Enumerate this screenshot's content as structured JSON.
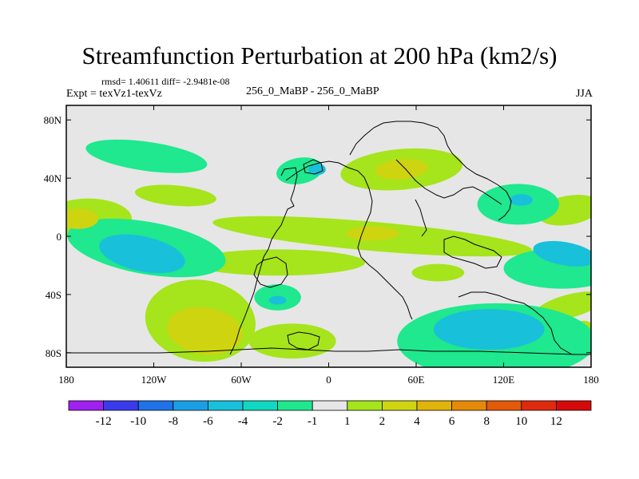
{
  "header": {
    "title": "Streamfunction Perturbation at 200 hPa (km2/s)",
    "stats": "rmsd= 1.40611 diff= -2.9481e-08",
    "experiment": "Expt = texVz1-texVz",
    "case_label": "256_0_MaBP - 256_0_MaBP",
    "season": "JJA"
  },
  "chart_data": {
    "type": "contour-map",
    "title": "Streamfunction Perturbation at 200 hPa (km2/s)",
    "xlim": [
      -180,
      180
    ],
    "ylim": [
      -90,
      90
    ],
    "x_ticks": [
      {
        "value": -180,
        "label": "180"
      },
      {
        "value": -120,
        "label": "120W"
      },
      {
        "value": -60,
        "label": "60W"
      },
      {
        "value": 0,
        "label": "0"
      },
      {
        "value": 60,
        "label": "60E"
      },
      {
        "value": 120,
        "label": "120E"
      },
      {
        "value": 180,
        "label": "180"
      }
    ],
    "y_ticks": [
      {
        "value": 80,
        "label": "80N"
      },
      {
        "value": 40,
        "label": "40N"
      },
      {
        "value": 0,
        "label": "0"
      },
      {
        "value": -40,
        "label": "40S"
      },
      {
        "value": -80,
        "label": "80S"
      }
    ],
    "colorbar": {
      "levels": [
        "-12",
        "-10",
        "-8",
        "-6",
        "-4",
        "-2",
        "-1",
        "1",
        "2",
        "4",
        "6",
        "8",
        "10",
        "12"
      ],
      "colors": [
        "#a020f0",
        "#3b3bee",
        "#1f72e8",
        "#1a9fe6",
        "#19c0d9",
        "#11d8c0",
        "#1fe88e",
        "#e6e6e6",
        "#a6e41c",
        "#cfd411",
        "#e0b40b",
        "#e58a08",
        "#e35a08",
        "#e02a10",
        "#d60a0a"
      ]
    },
    "background_color": "#e6e6e6",
    "regions": [
      {
        "name": "pos-north-atlantic",
        "level": "1-2",
        "cx": 50,
        "cy": 46,
        "rx": 42,
        "ry": 14,
        "rot": -5
      },
      {
        "name": "pos-north-atlantic-core",
        "level": "2-4",
        "cx": 50,
        "cy": 46,
        "rx": 18,
        "ry": 7,
        "rot": -5
      },
      {
        "name": "neg-north-pacific",
        "level": "-2--1",
        "cx": -125,
        "cy": 55,
        "rx": 42,
        "ry": 10,
        "rot": 8
      },
      {
        "name": "neg-north-atlantic",
        "level": "-2--1",
        "cx": -20,
        "cy": 45,
        "rx": 16,
        "ry": 9,
        "rot": -10
      },
      {
        "name": "neg-north-atlantic-core",
        "level": "-4--2",
        "cx": -8,
        "cy": 46,
        "rx": 6,
        "ry": 4,
        "rot": 0
      },
      {
        "name": "pos-north-pacific-low",
        "level": "1-2",
        "cx": -105,
        "cy": 28,
        "rx": 28,
        "ry": 7,
        "rot": 5
      },
      {
        "name": "pos-west-pacific",
        "level": "1-2",
        "cx": -165,
        "cy": 12,
        "rx": 30,
        "ry": 14,
        "rot": 0
      },
      {
        "name": "pos-west-pacific-core",
        "level": "2-4",
        "cx": -172,
        "cy": 12,
        "rx": 14,
        "ry": 7,
        "rot": 0
      },
      {
        "name": "neg-asia",
        "level": "-2--1",
        "cx": 130,
        "cy": 22,
        "rx": 28,
        "ry": 14,
        "rot": 0
      },
      {
        "name": "neg-asia-core",
        "level": "-4--2",
        "cx": 132,
        "cy": 25,
        "rx": 8,
        "ry": 4,
        "rot": 0
      },
      {
        "name": "pos-asia-east",
        "level": "1-2",
        "cx": 165,
        "cy": 18,
        "rx": 22,
        "ry": 10,
        "rot": -10
      },
      {
        "name": "pos-equatorial-band",
        "level": "1-2",
        "cx": 30,
        "cy": 0,
        "rx": 110,
        "ry": 10,
        "rot": 5
      },
      {
        "name": "pos-equatorial-core",
        "level": "2-4",
        "cx": 30,
        "cy": 2,
        "rx": 18,
        "ry": 5,
        "rot": 0
      },
      {
        "name": "neg-tropical-pacific",
        "level": "-2--1",
        "cx": -125,
        "cy": -8,
        "rx": 55,
        "ry": 18,
        "rot": 10
      },
      {
        "name": "neg-tropical-pacific-core",
        "level": "-4--2",
        "cx": -128,
        "cy": -12,
        "rx": 30,
        "ry": 12,
        "rot": 12
      },
      {
        "name": "neg-south-indian-east",
        "level": "-2--1",
        "cx": 160,
        "cy": -22,
        "rx": 40,
        "ry": 14,
        "rot": 0
      },
      {
        "name": "neg-south-indian-east-core",
        "level": "-4--2",
        "cx": 162,
        "cy": -12,
        "rx": 22,
        "ry": 8,
        "rot": 10
      },
      {
        "name": "pos-south-pacific",
        "level": "1-2",
        "cx": -88,
        "cy": -58,
        "rx": 38,
        "ry": 28,
        "rot": 8
      },
      {
        "name": "pos-south-pacific-core",
        "level": "2-4",
        "cx": -85,
        "cy": -65,
        "rx": 26,
        "ry": 16,
        "rot": 8
      },
      {
        "name": "pos-south-america",
        "level": "1-2",
        "cx": -35,
        "cy": -18,
        "rx": 60,
        "ry": 9,
        "rot": 0
      },
      {
        "name": "neg-south-atlantic",
        "level": "-2--1",
        "cx": -35,
        "cy": -42,
        "rx": 16,
        "ry": 9,
        "rot": 0
      },
      {
        "name": "neg-south-atlantic-core",
        "level": "-4--2",
        "cx": -35,
        "cy": -44,
        "rx": 6,
        "ry": 3,
        "rot": 0
      },
      {
        "name": "pos-south-atlantic-lower",
        "level": "1-2",
        "cx": -25,
        "cy": -72,
        "rx": 30,
        "ry": 12,
        "rot": 0
      },
      {
        "name": "pos-south-indian",
        "level": "1-2",
        "cx": 75,
        "cy": -25,
        "rx": 18,
        "ry": 6,
        "rot": 0
      },
      {
        "name": "neg-southern-ocean",
        "level": "-2--1",
        "cx": 115,
        "cy": -72,
        "rx": 68,
        "ry": 26,
        "rot": 0
      },
      {
        "name": "neg-southern-ocean-core",
        "level": "-4--2",
        "cx": 110,
        "cy": -64,
        "rx": 38,
        "ry": 14,
        "rot": 0
      },
      {
        "name": "pos-south-east-pacific",
        "level": "1-2",
        "cx": 165,
        "cy": -48,
        "rx": 25,
        "ry": 8,
        "rot": -15
      },
      {
        "name": "pos-south-east-pacific-2",
        "level": "1-2",
        "cx": 175,
        "cy": -70,
        "rx": 10,
        "ry": 12,
        "rot": 0
      }
    ]
  }
}
